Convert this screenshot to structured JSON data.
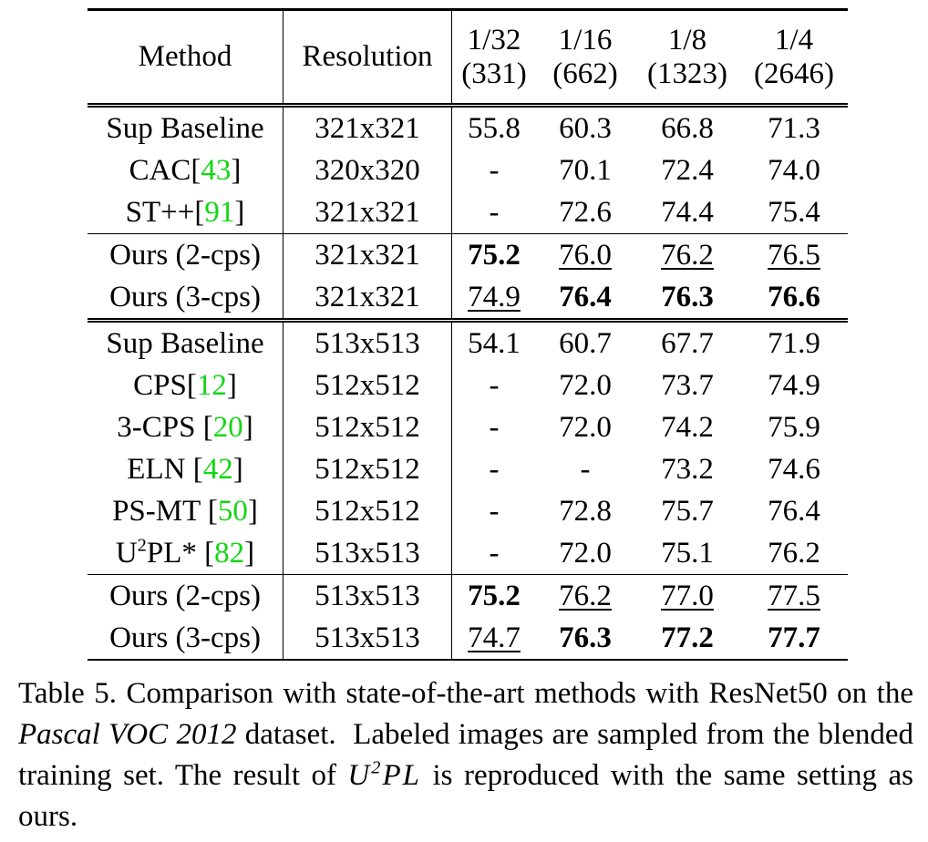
{
  "table": {
    "headers": {
      "method": "Method",
      "resolution": "Resolution",
      "splits": [
        {
          "fraction": "1/32",
          "count": "(331)"
        },
        {
          "fraction": "1/16",
          "count": "(662)"
        },
        {
          "fraction": "1/8",
          "count": "(1323)"
        },
        {
          "fraction": "1/4",
          "count": "(2646)"
        }
      ]
    },
    "group1": [
      {
        "name": "Sup Baseline",
        "ref": "",
        "res": "321x321",
        "v1": "55.8",
        "v2": "60.3",
        "v3": "66.8",
        "v4": "71.3"
      },
      {
        "name": "CAC",
        "ref": "43",
        "res": "320x320",
        "v1": "-",
        "v2": "70.1",
        "v3": "72.4",
        "v4": "74.0"
      },
      {
        "name": "ST++",
        "ref": "91",
        "res": "321x321",
        "v1": "-",
        "v2": "72.6",
        "v3": "74.4",
        "v4": "75.4"
      },
      {
        "name": "Ours (2-cps)",
        "ref": "",
        "res": "321x321",
        "v1": "75.2",
        "v2": "76.0",
        "v3": "76.2",
        "v4": "76.5"
      },
      {
        "name": "Ours (3-cps)",
        "ref": "",
        "res": "321x321",
        "v1": "74.9",
        "v2": "76.4",
        "v3": "76.3",
        "v4": "76.6"
      }
    ],
    "group2": [
      {
        "name": "Sup Baseline",
        "ref": "",
        "res": "513x513",
        "v1": "54.1",
        "v2": "60.7",
        "v3": "67.7",
        "v4": "71.9"
      },
      {
        "name": "CPS",
        "ref": "12",
        "res": "512x512",
        "v1": "-",
        "v2": "72.0",
        "v3": "73.7",
        "v4": "74.9"
      },
      {
        "name": "3-CPS ",
        "ref": "20",
        "res": "512x512",
        "v1": "-",
        "v2": "72.0",
        "v3": "74.2",
        "v4": "75.9"
      },
      {
        "name": "ELN ",
        "ref": "42",
        "res": "512x512",
        "v1": "-",
        "v2": "-",
        "v3": "73.2",
        "v4": "74.6"
      },
      {
        "name": "PS-MT ",
        "ref": "50",
        "res": "512x512",
        "v1": "-",
        "v2": "72.8",
        "v3": "75.7",
        "v4": "76.4"
      },
      {
        "name_pre": "U",
        "name_sup": "2",
        "name_post": "PL* ",
        "ref": "82",
        "res": "513x513",
        "v1": "-",
        "v2": "72.0",
        "v3": "75.1",
        "v4": "76.2"
      },
      {
        "name": "Ours (2-cps)",
        "ref": "",
        "res": "513x513",
        "v1": "75.2",
        "v2": "76.2",
        "v3": "77.0",
        "v4": "77.5"
      },
      {
        "name": "Ours (3-cps)",
        "ref": "",
        "res": "513x513",
        "v1": "74.7",
        "v2": "76.3",
        "v3": "77.2",
        "v4": "77.7"
      }
    ]
  },
  "caption": {
    "p1": "Table 5. Comparison with state-of-the-art methods with ResNet50 on the ",
    "dataset": "Pascal VOC 2012",
    "p2": " dataset.  Labeled images are sampled from the blended training set. The result of ",
    "math_base": "U",
    "math_sup": "2",
    "math_rest": "PL",
    "p3": " is reproduced with the same setting as ours."
  },
  "colors": {
    "reference_link": "#13d613",
    "text": "#000000"
  }
}
